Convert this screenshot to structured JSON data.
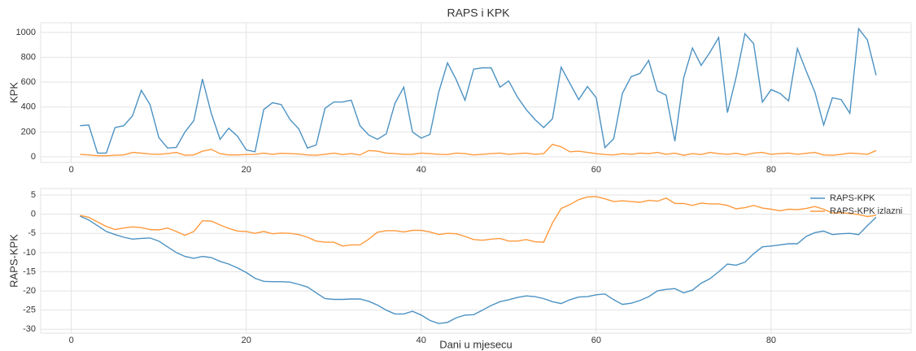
{
  "chart_data": [
    {
      "type": "line",
      "title": "RAPS i KPK",
      "ylabel": "KPK",
      "grid": true,
      "x": [
        1,
        2,
        3,
        4,
        5,
        6,
        7,
        8,
        9,
        10,
        11,
        12,
        13,
        14,
        15,
        16,
        17,
        18,
        19,
        20,
        21,
        22,
        23,
        24,
        25,
        26,
        27,
        28,
        29,
        30,
        31,
        32,
        33,
        34,
        35,
        36,
        37,
        38,
        39,
        40,
        41,
        42,
        43,
        44,
        45,
        46,
        47,
        48,
        49,
        50,
        51,
        52,
        53,
        54,
        55,
        56,
        57,
        58,
        59,
        60,
        61,
        62,
        63,
        64,
        65,
        66,
        67,
        68,
        69,
        70,
        71,
        72,
        73,
        74,
        75,
        76,
        77,
        78,
        79,
        80,
        81,
        82,
        83,
        84,
        85,
        86,
        87,
        88,
        89,
        90,
        91,
        92
      ],
      "series": [
        {
          "color": "#4c92c3",
          "values": [
            250,
            255,
            30,
            30,
            235,
            250,
            330,
            535,
            420,
            155,
            70,
            75,
            200,
            290,
            625,
            350,
            140,
            230,
            165,
            55,
            40,
            380,
            435,
            420,
            300,
            225,
            70,
            95,
            390,
            440,
            440,
            455,
            250,
            175,
            140,
            185,
            430,
            560,
            200,
            150,
            180,
            520,
            755,
            620,
            455,
            705,
            715,
            715,
            560,
            610,
            480,
            380,
            300,
            235,
            305,
            720,
            590,
            460,
            565,
            475,
            75,
            145,
            510,
            645,
            670,
            775,
            530,
            495,
            125,
            635,
            875,
            735,
            840,
            960,
            355,
            640,
            990,
            910,
            440,
            540,
            510,
            450,
            870,
            690,
            520,
            255,
            475,
            460,
            350,
            1030,
            940,
            655
          ]
        },
        {
          "color": "#ff9a3d",
          "values": [
            20,
            15,
            8,
            8,
            12,
            15,
            35,
            30,
            22,
            20,
            25,
            35,
            12,
            15,
            45,
            60,
            25,
            15,
            15,
            18,
            20,
            30,
            20,
            28,
            25,
            22,
            15,
            12,
            20,
            30,
            18,
            25,
            15,
            50,
            45,
            30,
            25,
            20,
            20,
            30,
            25,
            20,
            18,
            30,
            25,
            15,
            20,
            25,
            30,
            20,
            25,
            30,
            20,
            25,
            100,
            80,
            40,
            45,
            35,
            25,
            18,
            15,
            25,
            20,
            30,
            25,
            35,
            20,
            30,
            12,
            25,
            18,
            35,
            25,
            20,
            28,
            15,
            30,
            35,
            20,
            25,
            30,
            20,
            28,
            35,
            15,
            12,
            20,
            30,
            25,
            20,
            50
          ]
        }
      ],
      "xlim": [
        -3.5,
        96
      ],
      "xticks": [
        0,
        20,
        40,
        60,
        80
      ],
      "ylim": [
        -46,
        1078
      ],
      "yticks": [
        0,
        200,
        400,
        600,
        800,
        1000
      ]
    },
    {
      "type": "line",
      "ylabel": "RAPS-KPK",
      "xlabel": "Dani u mjesecu",
      "grid": true,
      "legend": "upper right",
      "x": [
        1,
        2,
        3,
        4,
        5,
        6,
        7,
        8,
        9,
        10,
        11,
        12,
        13,
        14,
        15,
        16,
        17,
        18,
        19,
        20,
        21,
        22,
        23,
        24,
        25,
        26,
        27,
        28,
        29,
        30,
        31,
        32,
        33,
        34,
        35,
        36,
        37,
        38,
        39,
        40,
        41,
        42,
        43,
        44,
        45,
        46,
        47,
        48,
        49,
        50,
        51,
        52,
        53,
        54,
        55,
        56,
        57,
        58,
        59,
        60,
        61,
        62,
        63,
        64,
        65,
        66,
        67,
        68,
        69,
        70,
        71,
        72,
        73,
        74,
        75,
        76,
        77,
        78,
        79,
        80,
        81,
        82,
        83,
        84,
        85,
        86,
        87,
        88,
        89,
        90,
        91,
        92
      ],
      "series": [
        {
          "name": "RAPS-KPK",
          "color": "#4c92c3",
          "values": [
            -0.5,
            -1.5,
            -3,
            -4.5,
            -5.3,
            -6,
            -6.5,
            -6.3,
            -6.2,
            -7,
            -8.5,
            -10,
            -11,
            -11.5,
            -11,
            -11.3,
            -12.3,
            -13,
            -14,
            -15.2,
            -16.7,
            -17.5,
            -17.6,
            -17.6,
            -17.7,
            -18.3,
            -19,
            -20.5,
            -22,
            -22.2,
            -22.2,
            -22.1,
            -22.1,
            -22.7,
            -23.7,
            -25,
            -26,
            -26,
            -25.3,
            -26.3,
            -27.7,
            -28.5,
            -28.2,
            -27,
            -26.3,
            -26.2,
            -25,
            -23.8,
            -22.8,
            -22.3,
            -21.7,
            -21.3,
            -21.5,
            -22,
            -22.8,
            -23.3,
            -22.3,
            -21.6,
            -21.5,
            -21,
            -20.8,
            -22.3,
            -23.5,
            -23.2,
            -22.5,
            -21.5,
            -20,
            -19.6,
            -19.4,
            -20.5,
            -19.8,
            -18,
            -16.8,
            -15,
            -13,
            -13.3,
            -12.5,
            -10.3,
            -8.5,
            -8.3,
            -8,
            -7.7,
            -7.7,
            -5.8,
            -4.8,
            -4.4,
            -5.3,
            -5.1,
            -5,
            -5.3,
            -3,
            -0.8
          ]
        },
        {
          "name": "RAPS-KPK izlazni",
          "color": "#ff9a3d",
          "values": [
            -0.3,
            -0.8,
            -2,
            -3.2,
            -4,
            -3.6,
            -3.3,
            -3.5,
            -4,
            -4.1,
            -3.6,
            -4.5,
            -5.5,
            -4.5,
            -1.7,
            -1.8,
            -2.8,
            -3.7,
            -4.4,
            -4.5,
            -5,
            -4.5,
            -5.1,
            -4.9,
            -5,
            -5.3,
            -6,
            -7,
            -7.3,
            -7.3,
            -8.3,
            -8,
            -8,
            -6.5,
            -4.7,
            -4.3,
            -4.3,
            -4.6,
            -4.2,
            -4.2,
            -4.6,
            -5.3,
            -5,
            -5.1,
            -5.8,
            -6.6,
            -6.8,
            -6.5,
            -6.3,
            -7,
            -7,
            -6.6,
            -7.2,
            -7.3,
            -2.3,
            1.5,
            2.5,
            3.8,
            4.5,
            4.6,
            4,
            3.3,
            3.5,
            3.3,
            3.1,
            3.6,
            3.4,
            4.2,
            2.8,
            2.8,
            2.3,
            2.9,
            2.7,
            2.7,
            2.3,
            1.4,
            1.7,
            2.3,
            1.6,
            1.3,
            0.9,
            1.3,
            1.2,
            1.5,
            2,
            1.3,
            0.3,
            0.4,
            0.2,
            -0.1,
            -0.6,
            -0.3
          ]
        }
      ],
      "xlim": [
        -3.5,
        96
      ],
      "xticks": [
        0,
        20,
        40,
        60,
        80
      ],
      "ylim": [
        -31,
        6.7
      ],
      "yticks": [
        5,
        0,
        -5,
        -10,
        -15,
        -20,
        -25,
        -30
      ]
    }
  ]
}
